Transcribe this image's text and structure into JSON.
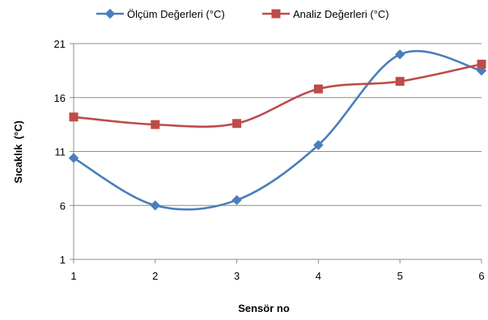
{
  "chart_data": {
    "type": "line",
    "x": [
      1,
      2,
      3,
      4,
      5,
      6
    ],
    "xlabel": "Sensör no",
    "ylabel": "Sıcaklık",
    "ylabel_unit": "(°C)",
    "ylim": [
      1,
      21
    ],
    "yticks": [
      1,
      6,
      11,
      16,
      21
    ],
    "xticks": [
      1,
      2,
      3,
      4,
      5,
      6
    ],
    "grid": "horizontal",
    "legend_position": "top",
    "smooth": true,
    "series": [
      {
        "name": "Ölçüm Değerleri (°C)",
        "color": "#4a7ebb",
        "marker": "diamond",
        "values": [
          10.4,
          6.0,
          6.5,
          11.6,
          20.0,
          18.5
        ]
      },
      {
        "name": "Analiz Değerleri (°C)",
        "color": "#be4b48",
        "marker": "square",
        "values": [
          14.2,
          13.5,
          13.6,
          16.8,
          17.5,
          19.1
        ]
      }
    ]
  }
}
